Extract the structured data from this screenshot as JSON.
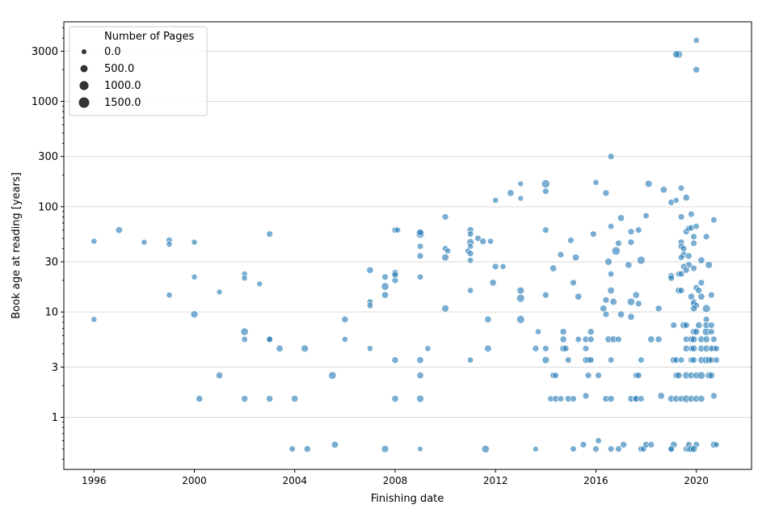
{
  "chart_data": {
    "type": "scatter",
    "title": "",
    "xlabel": "Finishing date",
    "ylabel": "Book age at reading [years]",
    "xlim": [
      1994.8,
      2022.2
    ],
    "ylim": [
      0.32,
      5700
    ],
    "yscale": "log",
    "x_ticks": [
      1996,
      2000,
      2004,
      2008,
      2012,
      2016,
      2020
    ],
    "y_ticks": [
      1,
      3,
      10,
      30,
      100,
      300,
      1000,
      3000
    ],
    "y_tick_labels": [
      "1",
      "3",
      "10",
      "30",
      "100",
      "300",
      "1000",
      "3000"
    ],
    "grid": "horizontal",
    "color": "#1f77b4",
    "legend": {
      "title": "Number of Pages",
      "placement": "top-left",
      "entries": [
        {
          "label": "0.0",
          "pages": 0
        },
        {
          "label": "500.0",
          "pages": 500
        },
        {
          "label": "1000.0",
          "pages": 1000
        },
        {
          "label": "1500.0",
          "pages": 1500
        }
      ]
    },
    "size_encoding": "Number of Pages",
    "point_fields": [
      "finishing_year",
      "book_age_years",
      "pages"
    ],
    "points": [
      [
        1996.0,
        47,
        200
      ],
      [
        1996.0,
        8.5,
        200
      ],
      [
        1997.0,
        60,
        400
      ],
      [
        1998.0,
        46,
        200
      ],
      [
        1999.0,
        48,
        300
      ],
      [
        1999.0,
        44,
        200
      ],
      [
        1999.0,
        14.5,
        200
      ],
      [
        2000.0,
        46,
        200
      ],
      [
        2000.0,
        21.5,
        200
      ],
      [
        2000.0,
        9.5,
        500
      ],
      [
        2000.2,
        1.5,
        400
      ],
      [
        2001.0,
        15.5,
        150
      ],
      [
        2001.0,
        2.5,
        400
      ],
      [
        2002.0,
        23,
        200
      ],
      [
        2002.0,
        21,
        200
      ],
      [
        2002.0,
        6.5,
        600
      ],
      [
        2002.0,
        5.5,
        250
      ],
      [
        2002.0,
        1.5,
        350
      ],
      [
        2002.6,
        18.5,
        150
      ],
      [
        2003.0,
        55,
        300
      ],
      [
        2003.0,
        5.5,
        300
      ],
      [
        2003.0,
        5.5,
        250
      ],
      [
        2003.0,
        1.5,
        350
      ],
      [
        2003.4,
        4.5,
        400
      ],
      [
        2003.9,
        0.5,
        250
      ],
      [
        2004.0,
        1.5,
        400
      ],
      [
        2004.4,
        4.5,
        500
      ],
      [
        2004.5,
        0.5,
        350
      ],
      [
        2005.5,
        2.5,
        600
      ],
      [
        2005.6,
        0.55,
        400
      ],
      [
        2006.0,
        8.5,
        350
      ],
      [
        2006.0,
        5.5,
        200
      ],
      [
        2007.0,
        25,
        400
      ],
      [
        2007.0,
        12.5,
        250
      ],
      [
        2007.0,
        11.5,
        250
      ],
      [
        2007.0,
        4.5,
        200
      ],
      [
        2007.6,
        0.5,
        500
      ],
      [
        2007.6,
        21.5,
        300
      ],
      [
        2007.6,
        17.5,
        600
      ],
      [
        2007.6,
        14.5,
        400
      ],
      [
        2008.0,
        20,
        300
      ],
      [
        2008.0,
        23.5,
        400
      ],
      [
        2008.0,
        22.5,
        300
      ],
      [
        2008.0,
        3.5,
        350
      ],
      [
        2008.0,
        1.5,
        400
      ],
      [
        2008.0,
        60,
        300
      ],
      [
        2008.1,
        60,
        200
      ],
      [
        2009.0,
        55,
        800
      ],
      [
        2009.0,
        57,
        400
      ],
      [
        2009.0,
        42,
        250
      ],
      [
        2009.0,
        34,
        300
      ],
      [
        2009.0,
        21.5,
        250
      ],
      [
        2009.0,
        3.5,
        400
      ],
      [
        2009.0,
        2.5,
        400
      ],
      [
        2009.0,
        1.5,
        500
      ],
      [
        2009.0,
        0.5,
        100
      ],
      [
        2009.3,
        4.5,
        200
      ],
      [
        2010.0,
        80,
        300
      ],
      [
        2010.0,
        40,
        250
      ],
      [
        2010.1,
        38,
        200
      ],
      [
        2010.0,
        33,
        500
      ],
      [
        2010.0,
        10.8,
        500
      ],
      [
        2011.0,
        60,
        350
      ],
      [
        2011.0,
        55,
        250
      ],
      [
        2011.0,
        46,
        500
      ],
      [
        2011.0,
        42,
        200
      ],
      [
        2010.9,
        38,
        200
      ],
      [
        2011.0,
        36,
        300
      ],
      [
        2011.0,
        31,
        200
      ],
      [
        2011.3,
        50,
        300
      ],
      [
        2011.5,
        47,
        350
      ],
      [
        2011.8,
        47,
        200
      ],
      [
        2011.0,
        16,
        200
      ],
      [
        2011.0,
        3.5,
        200
      ],
      [
        2011.7,
        8.5,
        350
      ],
      [
        2011.7,
        4.5,
        400
      ],
      [
        2011.6,
        0.5,
        600
      ],
      [
        2012.0,
        27,
        300
      ],
      [
        2011.9,
        19,
        400
      ],
      [
        2012.0,
        115,
        200
      ],
      [
        2012.3,
        27,
        200
      ],
      [
        2012.6,
        135,
        400
      ],
      [
        2013.0,
        165,
        150
      ],
      [
        2013.0,
        120,
        150
      ],
      [
        2013.0,
        16,
        500
      ],
      [
        2013.0,
        13.5,
        700
      ],
      [
        2013.0,
        8.5,
        700
      ],
      [
        2013.6,
        0.5,
        150
      ],
      [
        2013.6,
        4.5,
        300
      ],
      [
        2013.7,
        6.5,
        200
      ],
      [
        2014.0,
        165,
        800
      ],
      [
        2014.0,
        140,
        300
      ],
      [
        2014.0,
        60,
        300
      ],
      [
        2014.0,
        14.5,
        300
      ],
      [
        2014.0,
        4.5,
        300
      ],
      [
        2014.0,
        3.5,
        500
      ],
      [
        2014.2,
        1.5,
        250
      ],
      [
        2014.3,
        2.5,
        300
      ],
      [
        2014.4,
        2.5,
        250
      ],
      [
        2014.3,
        26,
        400
      ],
      [
        2014.4,
        1.5,
        350
      ],
      [
        2014.6,
        1.5,
        250
      ],
      [
        2014.6,
        35,
        300
      ],
      [
        2014.7,
        6.5,
        350
      ],
      [
        2014.7,
        5.5,
        350
      ],
      [
        2014.7,
        4.5,
        400
      ],
      [
        2014.8,
        4.5,
        300
      ],
      [
        2014.9,
        3.5,
        300
      ],
      [
        2015.0,
        48,
        300
      ],
      [
        2015.1,
        0.5,
        250
      ],
      [
        2015.1,
        19,
        300
      ],
      [
        2015.2,
        33,
        400
      ],
      [
        2014.9,
        1.5,
        350
      ],
      [
        2015.1,
        1.5,
        300
      ],
      [
        2015.3,
        14,
        400
      ],
      [
        2015.3,
        5.5,
        250
      ],
      [
        2015.5,
        0.55,
        300
      ],
      [
        2015.6,
        5.5,
        350
      ],
      [
        2015.6,
        4.5,
        300
      ],
      [
        2015.6,
        3.5,
        400
      ],
      [
        2015.7,
        3.5,
        300
      ],
      [
        2015.6,
        1.6,
        300
      ],
      [
        2015.7,
        2.5,
        300
      ],
      [
        2015.8,
        6.5,
        350
      ],
      [
        2015.8,
        3.5,
        300
      ],
      [
        2015.8,
        5.5,
        300
      ],
      [
        2015.9,
        55,
        300
      ],
      [
        2016.0,
        170,
        200
      ],
      [
        2016.0,
        0.5,
        300
      ],
      [
        2016.1,
        0.6,
        250
      ],
      [
        2016.1,
        2.5,
        300
      ],
      [
        2016.3,
        10.8,
        400
      ],
      [
        2016.4,
        135,
        350
      ],
      [
        2016.4,
        13,
        300
      ],
      [
        2016.4,
        9.5,
        300
      ],
      [
        2016.4,
        1.5,
        350
      ],
      [
        2016.5,
        30,
        500
      ],
      [
        2016.5,
        5.5,
        400
      ],
      [
        2016.6,
        1.5,
        350
      ],
      [
        2016.6,
        0.5,
        300
      ],
      [
        2016.6,
        300,
        300
      ],
      [
        2016.6,
        65,
        250
      ],
      [
        2016.6,
        23,
        250
      ],
      [
        2016.6,
        16,
        450
      ],
      [
        2016.6,
        3.5,
        250
      ],
      [
        2016.7,
        12.5,
        450
      ],
      [
        2016.7,
        5.5,
        400
      ],
      [
        2016.8,
        38,
        800
      ],
      [
        2016.9,
        45,
        300
      ],
      [
        2016.9,
        5.5,
        300
      ],
      [
        2016.9,
        0.5,
        300
      ],
      [
        2017.0,
        78,
        400
      ],
      [
        2017.0,
        9.5,
        400
      ],
      [
        2017.1,
        0.55,
        350
      ],
      [
        2017.3,
        28,
        400
      ],
      [
        2017.4,
        58,
        300
      ],
      [
        2017.4,
        46,
        300
      ],
      [
        2017.4,
        12.5,
        600
      ],
      [
        2017.4,
        9,
        400
      ],
      [
        2017.4,
        1.5,
        350
      ],
      [
        2017.6,
        1.5,
        400
      ],
      [
        2017.6,
        1.5,
        300
      ],
      [
        2017.6,
        14.5,
        400
      ],
      [
        2017.7,
        60,
        300
      ],
      [
        2017.7,
        12,
        300
      ],
      [
        2017.6,
        2.5,
        250
      ],
      [
        2017.7,
        2.5,
        300
      ],
      [
        2017.8,
        3.5,
        250
      ],
      [
        2017.8,
        31,
        700
      ],
      [
        2017.8,
        1.5,
        300
      ],
      [
        2017.8,
        0.5,
        300
      ],
      [
        2017.9,
        0.5,
        250
      ],
      [
        2018.0,
        0.55,
        350
      ],
      [
        2018.0,
        82,
        250
      ],
      [
        2018.1,
        165,
        500
      ],
      [
        2018.2,
        0.55,
        300
      ],
      [
        2018.2,
        5.5,
        400
      ],
      [
        2018.5,
        5.5,
        350
      ],
      [
        2018.5,
        10.8,
        350
      ],
      [
        2018.6,
        1.6,
        400
      ],
      [
        2018.7,
        145,
        400
      ],
      [
        2019.0,
        1.5,
        400
      ],
      [
        2019.0,
        0.5,
        300
      ],
      [
        2019.1,
        0.55,
        400
      ],
      [
        2019.0,
        0.5,
        250
      ],
      [
        2019.0,
        110,
        300
      ],
      [
        2019.2,
        115,
        200
      ],
      [
        2019.0,
        22,
        350
      ],
      [
        2019.0,
        21,
        300
      ],
      [
        2019.1,
        7.5,
        300
      ],
      [
        2019.1,
        3.5,
        400
      ],
      [
        2019.2,
        3.5,
        300
      ],
      [
        2019.2,
        2.5,
        350
      ],
      [
        2019.3,
        2.5,
        400
      ],
      [
        2019.2,
        1.5,
        400
      ],
      [
        2019.4,
        1.5,
        350
      ],
      [
        2019.3,
        23,
        250
      ],
      [
        2019.3,
        16,
        400
      ],
      [
        2019.4,
        16,
        300
      ],
      [
        2019.4,
        46,
        300
      ],
      [
        2019.4,
        150,
        250
      ],
      [
        2019.4,
        80,
        300
      ],
      [
        2019.4,
        42,
        250
      ],
      [
        2019.5,
        40,
        300
      ],
      [
        2019.5,
        35,
        400
      ],
      [
        2019.4,
        33,
        250
      ],
      [
        2019.5,
        7.5,
        500
      ],
      [
        2019.6,
        7.5,
        300
      ],
      [
        2019.6,
        4.5,
        350
      ],
      [
        2019.6,
        5.5,
        300
      ],
      [
        2019.4,
        3.5,
        250
      ],
      [
        2019.6,
        2.5,
        500
      ],
      [
        2019.6,
        0.5,
        300
      ],
      [
        2019.7,
        0.5,
        300
      ],
      [
        2019.4,
        23,
        300
      ],
      [
        2019.6,
        122,
        400
      ],
      [
        2019.6,
        58,
        300
      ],
      [
        2019.7,
        62,
        300
      ],
      [
        2019.7,
        34,
        300
      ],
      [
        2019.7,
        28,
        400
      ],
      [
        2019.5,
        27,
        300
      ],
      [
        2019.6,
        25,
        300
      ],
      [
        2019.6,
        1.5,
        600
      ],
      [
        2019.7,
        0.55,
        300
      ],
      [
        2019.8,
        5.5,
        400
      ],
      [
        2019.8,
        63,
        300
      ],
      [
        2019.8,
        4.5,
        300
      ],
      [
        2019.8,
        3.5,
        300
      ],
      [
        2019.8,
        2.5,
        400
      ],
      [
        2019.8,
        1.5,
        400
      ],
      [
        2019.8,
        0.5,
        500
      ],
      [
        2019.8,
        14,
        400
      ],
      [
        2019.9,
        12.5,
        300
      ],
      [
        2019.9,
        12,
        300
      ],
      [
        2020.0,
        11.5,
        300
      ],
      [
        2019.9,
        10.8,
        400
      ],
      [
        2019.9,
        26,
        300
      ],
      [
        2019.8,
        85,
        300
      ],
      [
        2019.9,
        52,
        300
      ],
      [
        2019.9,
        45,
        300
      ],
      [
        2019.9,
        6.5,
        400
      ],
      [
        2019.9,
        4.5,
        400
      ],
      [
        2019.9,
        3.5,
        300
      ],
      [
        2020.0,
        2.5,
        400
      ],
      [
        2020.0,
        1.5,
        400
      ],
      [
        2020.0,
        0.55,
        300
      ],
      [
        2019.9,
        0.5,
        400
      ],
      [
        2019.9,
        5.5,
        400
      ],
      [
        2020.0,
        17,
        300
      ],
      [
        2020.0,
        65,
        250
      ],
      [
        2020.0,
        2000,
        350
      ],
      [
        2020.0,
        3800,
        200
      ],
      [
        2019.3,
        2800,
        600
      ],
      [
        2019.2,
        2800,
        500
      ],
      [
        2020.0,
        6.5,
        400
      ],
      [
        2020.1,
        16,
        300
      ],
      [
        2020.2,
        14,
        400
      ],
      [
        2020.2,
        19,
        300
      ],
      [
        2020.1,
        7.5,
        400
      ],
      [
        2020.2,
        5.5,
        400
      ],
      [
        2020.2,
        4.5,
        400
      ],
      [
        2020.2,
        3.5,
        400
      ],
      [
        2020.2,
        2.5,
        600
      ],
      [
        2020.2,
        1.5,
        400
      ],
      [
        2020.2,
        31,
        400
      ],
      [
        2020.4,
        52,
        300
      ],
      [
        2020.4,
        10.8,
        700
      ],
      [
        2020.4,
        6.5,
        700
      ],
      [
        2020.4,
        8.5,
        300
      ],
      [
        2020.4,
        7.5,
        400
      ],
      [
        2020.4,
        5.5,
        400
      ],
      [
        2020.4,
        4.5,
        400
      ],
      [
        2020.4,
        3.5,
        600
      ],
      [
        2020.5,
        2.5,
        500
      ],
      [
        2020.5,
        3.5,
        400
      ],
      [
        2020.5,
        28,
        500
      ],
      [
        2020.6,
        14.5,
        300
      ],
      [
        2020.6,
        7.5,
        300
      ],
      [
        2020.6,
        6.5,
        300
      ],
      [
        2020.7,
        5.5,
        300
      ],
      [
        2020.7,
        4.5,
        300
      ],
      [
        2020.6,
        4.5,
        300
      ],
      [
        2020.8,
        4.5,
        300
      ],
      [
        2020.6,
        3.5,
        300
      ],
      [
        2020.8,
        3.5,
        300
      ],
      [
        2020.7,
        75,
        250
      ],
      [
        2020.7,
        1.6,
        300
      ],
      [
        2020.7,
        0.55,
        400
      ],
      [
        2020.8,
        0.55,
        200
      ],
      [
        2020.6,
        2.5,
        400
      ]
    ]
  }
}
